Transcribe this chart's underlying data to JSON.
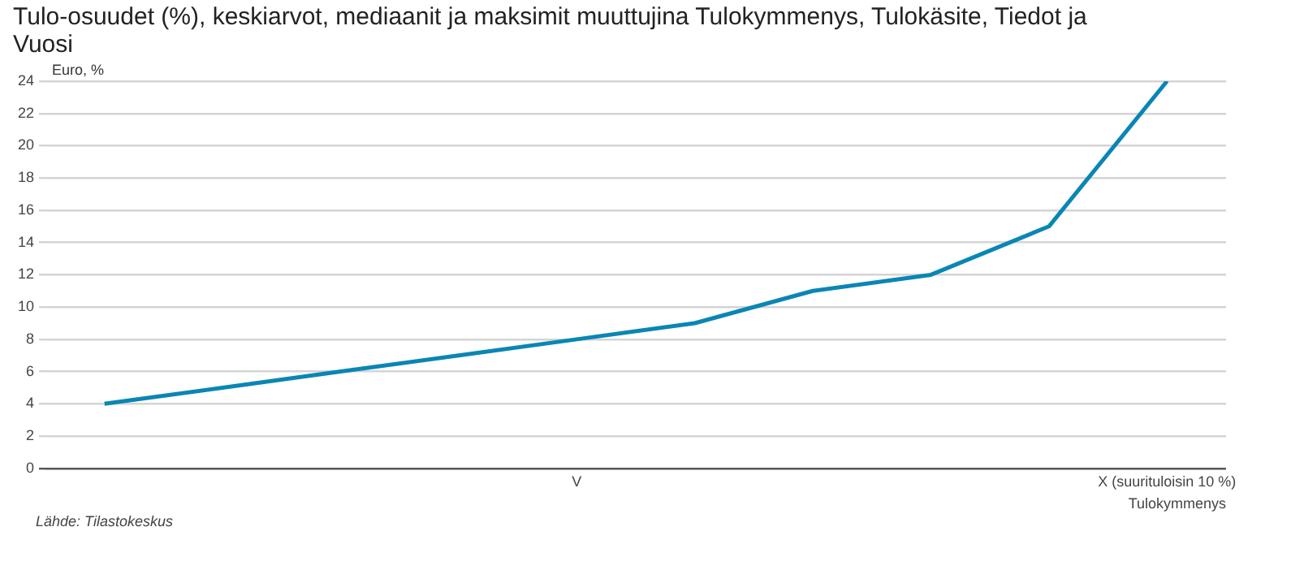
{
  "chart_data": {
    "type": "line",
    "title": "Tulo-osuudet (%), keskiarvot, mediaanit ja maksimit muuttujina Tulokymmenys, Tulokäsite, Tiedot ja Vuosi",
    "xlabel": "Tulokymmenys",
    "ylabel": "Euro, %",
    "categories": [
      null,
      null,
      null,
      null,
      "V",
      null,
      null,
      null,
      null,
      "X (suurituloisin 10 %)"
    ],
    "series": [
      {
        "color": "#0a86b4",
        "values": [
          4,
          5,
          6,
          7,
          8,
          9,
          11,
          12,
          15,
          24
        ]
      }
    ],
    "ylim": [
      0,
      24
    ],
    "yticks": [
      0,
      2,
      4,
      6,
      8,
      10,
      12,
      14,
      16,
      18,
      20,
      22,
      24
    ],
    "grid": "y",
    "legend": false,
    "marker": "none",
    "line_style": "solid",
    "annotations": [
      "Lähde: Tilastokeskus"
    ]
  }
}
